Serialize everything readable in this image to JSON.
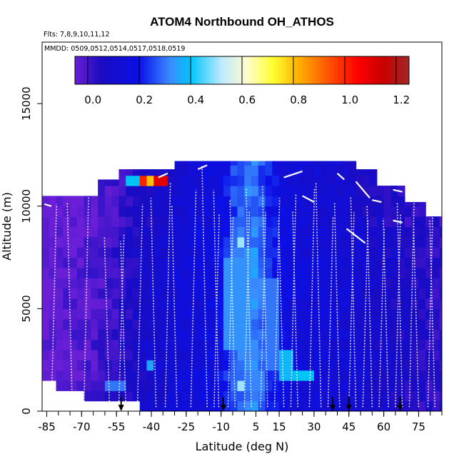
{
  "chart_data": {
    "type": "heatmap",
    "title": "ATOM4 Northbound OH_ATHOS",
    "flights_label": "Flts: 7,8,9,10,11,12",
    "dates_label": "MMDD: 0509,0512,0514,0517,0518,0519",
    "xlabel": "Latitude (deg N)",
    "ylabel": "Altitude (m)",
    "xlim": [
      -87,
      85
    ],
    "ylim": [
      0,
      18000
    ],
    "x_ticks": [
      -85,
      -70,
      -55,
      -40,
      -25,
      -10,
      5,
      15,
      30,
      45,
      60,
      75
    ],
    "x_tick_labels": [
      "-85",
      "-70",
      "-55",
      "-40",
      "-25",
      "-10",
      "5",
      "15",
      "30",
      "45",
      "60",
      "75"
    ],
    "x_minor_step": 5,
    "y_ticks": [
      0,
      5000,
      10000,
      15000
    ],
    "y_tick_labels": [
      "0",
      "5000",
      "10000",
      "15000"
    ],
    "colorbar": {
      "range": [
        -0.05,
        1.25
      ],
      "ticks": [
        0.0,
        0.2,
        0.4,
        0.6,
        0.8,
        1.0,
        1.2
      ],
      "tick_labels": [
        "0.0",
        "0.2",
        "0.4",
        "0.6",
        "0.8",
        "1.0",
        "1.2"
      ],
      "stops": [
        {
          "v": -0.05,
          "c": "#6a1fd6"
        },
        {
          "v": 0.05,
          "c": "#1a0cc2"
        },
        {
          "v": 0.2,
          "c": "#0a10e8"
        },
        {
          "v": 0.32,
          "c": "#3a8cff"
        },
        {
          "v": 0.4,
          "c": "#00c4f8"
        },
        {
          "v": 0.52,
          "c": "#bfeaff"
        },
        {
          "v": 0.62,
          "c": "#fffccc"
        },
        {
          "v": 0.72,
          "c": "#ffff30"
        },
        {
          "v": 0.82,
          "c": "#ffb000"
        },
        {
          "v": 0.95,
          "c": "#ff4800"
        },
        {
          "v": 1.05,
          "c": "#ff0000"
        },
        {
          "v": 1.15,
          "c": "#c80000"
        },
        {
          "v": 1.25,
          "c": "#a02828"
        }
      ]
    },
    "field": {
      "lat_start": -87,
      "lat_step": 3,
      "alt_step": 500,
      "top_alt": [
        10500,
        10500,
        10500,
        10500,
        10500,
        10500,
        10500,
        10500,
        11300,
        11300,
        11300,
        11800,
        11800,
        11800,
        11800,
        11800,
        11800,
        11800,
        11800,
        12200,
        12200,
        12200,
        12200,
        12200,
        12200,
        12200,
        12200,
        12200,
        12200,
        12200,
        12200,
        12200,
        12200,
        12200,
        12200,
        12200,
        12200,
        12200,
        12200,
        12200,
        12200,
        12200,
        12200,
        12200,
        12200,
        11800,
        11800,
        11800,
        11000,
        11000,
        11000,
        11000,
        10200,
        10200,
        10200,
        9500,
        9500,
        9500
      ],
      "bottom_alt": [
        1500,
        1500,
        1000,
        1000,
        1000,
        1000,
        500,
        500,
        500,
        500,
        500,
        500,
        500,
        500,
        0,
        0,
        0,
        0,
        0,
        0,
        0,
        0,
        0,
        0,
        0,
        0,
        0,
        0,
        0,
        0,
        0,
        0,
        0,
        0,
        0,
        0,
        0,
        0,
        0,
        0,
        0,
        0,
        0,
        0,
        0,
        0,
        0,
        0,
        0,
        0,
        0,
        0,
        0,
        0,
        0,
        0,
        0,
        0
      ],
      "base_value": [
        -0.04,
        -0.04,
        -0.04,
        -0.03,
        -0.03,
        -0.03,
        -0.02,
        -0.01,
        0.0,
        0.01,
        0.02,
        0.04,
        0.05,
        0.06,
        0.08,
        0.09,
        0.1,
        0.1,
        0.12,
        0.13,
        0.13,
        0.14,
        0.15,
        0.16,
        0.16,
        0.18,
        0.22,
        0.27,
        0.3,
        0.32,
        0.32,
        0.28,
        0.23,
        0.2,
        0.17,
        0.16,
        0.15,
        0.14,
        0.14,
        0.13,
        0.13,
        0.12,
        0.12,
        0.11,
        0.11,
        0.1,
        0.09,
        0.08,
        0.08,
        0.07,
        0.07,
        0.06,
        0.05,
        0.05,
        0.04,
        0.04,
        0.03,
        0.03
      ],
      "anomalies": [
        {
          "lat": [
            -45,
            -33
          ],
          "alt": [
            10800,
            11400
          ],
          "value": 1.0
        },
        {
          "lat": [
            -42,
            -35
          ],
          "alt": [
            10900,
            11300
          ],
          "value": 0.8
        },
        {
          "lat": [
            -39,
            -32
          ],
          "alt": [
            11000,
            11300
          ],
          "value": 1.1
        },
        {
          "lat": [
            -30,
            -29
          ],
          "alt": [
            10300,
            11300
          ],
          "value": 1.15
        },
        {
          "lat": [
            -51,
            -45
          ],
          "alt": [
            11000,
            11600
          ],
          "value": 0.4
        },
        {
          "lat": [
            -42,
            -39
          ],
          "alt": [
            1800,
            2300
          ],
          "value": 0.35
        },
        {
          "lat": [
            -2,
            1
          ],
          "alt": [
            1000,
            1600
          ],
          "value": 0.5
        },
        {
          "lat": [
            -2,
            1
          ],
          "alt": [
            7800,
            8300
          ],
          "value": 0.5
        },
        {
          "lat": [
            22,
            29
          ],
          "alt": [
            1500,
            2000
          ],
          "value": 0.4
        },
        {
          "lat": [
            -8,
            3
          ],
          "alt": [
            3000,
            7500
          ],
          "value": 0.33
        },
        {
          "lat": [
            8,
            15
          ],
          "alt": [
            2200,
            6500
          ],
          "value": 0.3
        },
        {
          "lat": [
            -60,
            -52
          ],
          "alt": [
            800,
            1600
          ],
          "value": 0.3
        },
        {
          "lat": [
            -57,
            -53
          ],
          "alt": [
            0,
            700
          ],
          "value": 0.22
        },
        {
          "lat": [
            14,
            20
          ],
          "alt": [
            1600,
            3200
          ],
          "value": 0.38
        }
      ]
    },
    "profile_latitudes": [
      -83,
      -74,
      -69,
      -58,
      -54,
      -51,
      -46,
      -38,
      -34,
      -29,
      -23,
      -16,
      -13,
      -11,
      -7,
      -4,
      0,
      3,
      7,
      10,
      13,
      17,
      20,
      23,
      28,
      33,
      36,
      41,
      45,
      48,
      51,
      55,
      58,
      62,
      65,
      68,
      71,
      75,
      79,
      82
    ],
    "profile_top_alts": [
      10100,
      10200,
      11700,
      8500,
      8600,
      8300,
      10100,
      10400,
      11200,
      10000,
      10800,
      12000,
      9600,
      10800,
      9500,
      10300,
      9800,
      10900,
      9700,
      11000,
      10400,
      9300,
      10600,
      9800,
      10900,
      11200,
      9500,
      10200,
      9700,
      10500,
      9300,
      10000,
      8900,
      9400,
      9600,
      10200,
      10900,
      9200,
      10300,
      9300
    ],
    "flight_legs": [
      {
        "lat": [
          -73,
          -66
        ],
        "alt": [
          11300,
          11700
        ]
      },
      {
        "lat": [
          -37,
          -33
        ],
        "alt": [
          11400,
          11600
        ]
      },
      {
        "lat": [
          -20,
          -16
        ],
        "alt": [
          11800,
          12000
        ]
      },
      {
        "lat": [
          17,
          25
        ],
        "alt": [
          11400,
          11700
        ]
      },
      {
        "lat": [
          25,
          30
        ],
        "alt": [
          10500,
          10200
        ]
      },
      {
        "lat": [
          40,
          43
        ],
        "alt": [
          11600,
          11300
        ]
      },
      {
        "lat": [
          48,
          54
        ],
        "alt": [
          11200,
          10400
        ]
      },
      {
        "lat": [
          55,
          59
        ],
        "alt": [
          10300,
          10200
        ]
      },
      {
        "lat": [
          44,
          52
        ],
        "alt": [
          8900,
          8200
        ]
      },
      {
        "lat": [
          64,
          68
        ],
        "alt": [
          10800,
          10700
        ]
      },
      {
        "lat": [
          -86,
          -83
        ],
        "alt": [
          10100,
          10000
        ]
      },
      {
        "lat": [
          64,
          68
        ],
        "alt": [
          9300,
          9200
        ]
      }
    ],
    "arrow_latitudes": [
      -53,
      -9,
      38,
      45,
      67
    ]
  }
}
